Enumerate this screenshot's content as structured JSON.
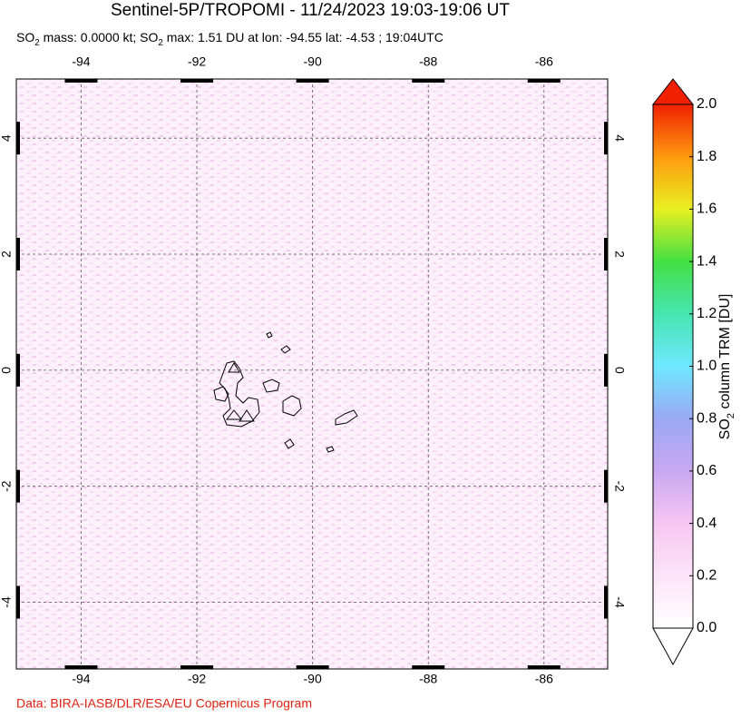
{
  "title": "Sentinel-5P/TROPOMI - 11/24/2023 19:03-19:06 UT",
  "subtitle": [
    {
      "text": "SO"
    },
    {
      "text": "2",
      "sub": true
    },
    {
      "text": " mass: 0.0000 kt; SO"
    },
    {
      "text": "2",
      "sub": true
    },
    {
      "text": " max: 1.51 DU at lon: -94.55 lat: -4.53 ; 19:04UTC"
    }
  ],
  "map": {
    "xlim": [
      -95.12,
      -84.9
    ],
    "ylim": [
      -5.15,
      5.02
    ],
    "xticks": [
      -94,
      -92,
      -90,
      -88,
      -86
    ],
    "yticks": [
      4,
      2,
      0,
      -2,
      -4
    ],
    "grid": true
  },
  "colorbar": {
    "label": [
      {
        "text": "SO"
      },
      {
        "text": "2",
        "sub": true
      },
      {
        "text": " column TRM [DU]"
      }
    ],
    "lim": [
      0,
      2
    ],
    "ticks": [
      {
        "value": 0,
        "label": "0.0"
      },
      0.2,
      0.4,
      0.6,
      0.8,
      {
        "value": 1,
        "label": "1.0"
      },
      1.2,
      1.4,
      1.6,
      1.8,
      {
        "value": 2,
        "label": "2.0"
      }
    ]
  },
  "credit": "Data: BIRA-IASB/DLR/ESA/EU Copernicus Program"
}
